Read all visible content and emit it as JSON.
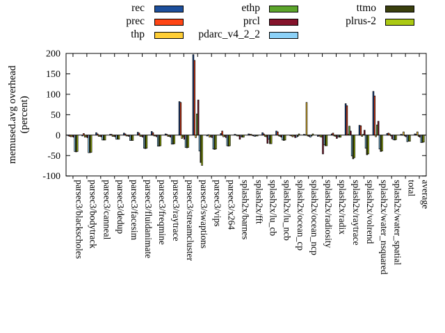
{
  "chart_data": {
    "type": "bar",
    "title": "",
    "ylabel_line1": "memused.avg overhead",
    "ylabel_line2": "(percent)",
    "xlabel": "",
    "ylim": [
      -100,
      200
    ],
    "yticks": [
      -100,
      -50,
      0,
      50,
      100,
      150,
      200
    ],
    "grid": false,
    "legend_position": "top",
    "legend_columns": [
      [
        "rec",
        "prec",
        "thp"
      ],
      [
        "ethp",
        "prcl",
        "pdarc_v4_2_2"
      ],
      [
        "ttmo",
        "plrus-2"
      ]
    ],
    "categories": [
      "parsec3/blackscholes",
      "parsec3/bodytrack",
      "parsec3/canneal",
      "parsec3/dedup",
      "parsec3/facesim",
      "parsec3/fluidanimate",
      "parsec3/freqmine",
      "parsec3/raytrace",
      "parsec3/streamcluster",
      "parsec3/swaptions",
      "parsec3/vips",
      "parsec3/x264",
      "splash2x/barnes",
      "splash2x/fft",
      "splash2x/lu_cb",
      "splash2x/lu_ncb",
      "splash2x/ocean_cp",
      "splash2x/ocean_ncp",
      "splash2x/radiosity",
      "splash2x/radix",
      "splash2x/raytrace",
      "splash2x/volrend",
      "splash2x/water_nsquared",
      "splash2x/water_spatial",
      "total",
      "average"
    ],
    "series": [
      {
        "name": "rec",
        "color": "#1d4f9c",
        "values": [
          -2,
          -2,
          6,
          2,
          5,
          7,
          9,
          3,
          82,
          197,
          -2,
          4,
          2,
          3,
          6,
          10,
          -1,
          2,
          -3,
          3,
          77,
          24,
          107,
          4,
          2,
          3
        ]
      },
      {
        "name": "prec",
        "color": "#ff4515",
        "values": [
          -3,
          4,
          3,
          2,
          3,
          5,
          6,
          2,
          80,
          183,
          1,
          10,
          1,
          2,
          3,
          8,
          -2,
          1,
          -2,
          5,
          72,
          23,
          96,
          5,
          1,
          2
        ]
      },
      {
        "name": "thp",
        "color": "#fecd35",
        "values": [
          -4,
          -5,
          -3,
          -3,
          -2,
          -3,
          -2,
          -3,
          -8,
          -6,
          -5,
          -4,
          -2,
          2,
          -3,
          -2,
          -4,
          80,
          -4,
          -2,
          2,
          -3,
          -4,
          3,
          8,
          8
        ]
      },
      {
        "name": "ethp",
        "color": "#5ca52b",
        "values": [
          -3,
          -4,
          -3,
          -3,
          -2,
          -3,
          -2,
          -3,
          -5,
          52,
          -4,
          -3,
          -2,
          -1,
          -4,
          -3,
          -2,
          -2,
          -5,
          -3,
          22,
          2,
          25,
          -2,
          -2,
          -3
        ]
      },
      {
        "name": "prcl",
        "color": "#85132b",
        "values": [
          -5,
          -6,
          -4,
          -4,
          -3,
          -5,
          -4,
          -5,
          -10,
          86,
          -6,
          -6,
          -10,
          -2,
          -20,
          -5,
          -6,
          -3,
          -46,
          -8,
          10,
          12,
          34,
          -9,
          -4,
          -5
        ]
      },
      {
        "name": "pdarc_v4_2_2",
        "color": "#8cd1f7",
        "values": [
          -40,
          -43,
          -12,
          -10,
          -13,
          -32,
          -27,
          -22,
          -30,
          -39,
          -34,
          -26,
          -4,
          -3,
          -10,
          -12,
          -5,
          -5,
          -23,
          -4,
          -51,
          -32,
          -34,
          -11,
          -16,
          -18
        ]
      },
      {
        "name": "ttmo",
        "color": "#3a3f0d",
        "values": [
          -41,
          -43,
          -12,
          -10,
          -13,
          -33,
          -27,
          -22,
          -31,
          -67,
          -35,
          -27,
          -5,
          -2,
          -21,
          -13,
          -3,
          -2,
          -26,
          -5,
          -58,
          -48,
          -40,
          -12,
          -15,
          -18
        ]
      },
      {
        "name": "plrus-2",
        "color": "#abc913",
        "values": [
          -40,
          -42,
          -12,
          -10,
          -13,
          -32,
          -26,
          -21,
          -30,
          -74,
          -34,
          -26,
          -5,
          -2,
          -21,
          -12,
          3,
          3,
          -26,
          -5,
          -55,
          -46,
          -39,
          -11,
          -15,
          -17
        ]
      }
    ]
  }
}
